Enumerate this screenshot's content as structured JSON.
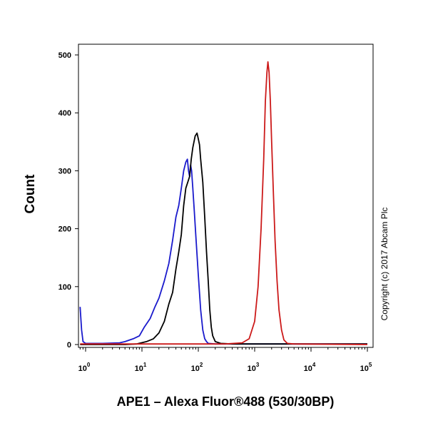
{
  "chart_data": {
    "type": "line",
    "xlabel": "APE1 – Alexa Fluor®488 (530/30BP)",
    "ylabel": "Count",
    "copyright": "Copyright (c) 2017 Abcam Plc",
    "x_scale": "log",
    "xlim": [
      0.8,
      100000
    ],
    "ylim": [
      0,
      500
    ],
    "x_ticks": [
      {
        "base": "10",
        "exp": "0",
        "value": 1
      },
      {
        "base": "10",
        "exp": "1",
        "value": 10
      },
      {
        "base": "10",
        "exp": "2",
        "value": 100
      },
      {
        "base": "10",
        "exp": "3",
        "value": 1000
      },
      {
        "base": "10",
        "exp": "4",
        "value": 10000
      },
      {
        "base": "10",
        "exp": "5",
        "value": 100000
      }
    ],
    "y_ticks": [
      0,
      100,
      200,
      300,
      400,
      500
    ],
    "grid": false,
    "legend": "none",
    "series": [
      {
        "color": "#1a1acc",
        "points": [
          [
            0.8,
            65
          ],
          [
            0.85,
            25
          ],
          [
            0.9,
            5
          ],
          [
            1,
            2
          ],
          [
            2,
            2
          ],
          [
            4,
            3
          ],
          [
            5,
            5
          ],
          [
            7,
            10
          ],
          [
            9,
            15
          ],
          [
            11,
            30
          ],
          [
            14,
            45
          ],
          [
            17,
            65
          ],
          [
            20,
            80
          ],
          [
            25,
            110
          ],
          [
            30,
            140
          ],
          [
            35,
            180
          ],
          [
            40,
            220
          ],
          [
            45,
            240
          ],
          [
            50,
            270
          ],
          [
            55,
            300
          ],
          [
            60,
            315
          ],
          [
            64,
            320
          ],
          [
            67,
            300
          ],
          [
            70,
            290
          ],
          [
            73,
            310
          ],
          [
            76,
            300
          ],
          [
            80,
            270
          ],
          [
            85,
            230
          ],
          [
            90,
            190
          ],
          [
            100,
            120
          ],
          [
            110,
            60
          ],
          [
            120,
            25
          ],
          [
            130,
            10
          ],
          [
            140,
            5
          ],
          [
            150,
            2
          ],
          [
            200,
            1
          ],
          [
            1000,
            1
          ],
          [
            100000,
            1
          ]
        ]
      },
      {
        "color": "#000000",
        "points": [
          [
            0.8,
            0
          ],
          [
            5,
            0
          ],
          [
            8,
            1
          ],
          [
            12,
            5
          ],
          [
            16,
            10
          ],
          [
            20,
            20
          ],
          [
            25,
            40
          ],
          [
            30,
            70
          ],
          [
            35,
            90
          ],
          [
            40,
            130
          ],
          [
            45,
            160
          ],
          [
            50,
            190
          ],
          [
            55,
            240
          ],
          [
            60,
            270
          ],
          [
            70,
            290
          ],
          [
            75,
            320
          ],
          [
            80,
            340
          ],
          [
            88,
            360
          ],
          [
            95,
            365
          ],
          [
            100,
            355
          ],
          [
            105,
            345
          ],
          [
            110,
            320
          ],
          [
            120,
            280
          ],
          [
            130,
            220
          ],
          [
            140,
            160
          ],
          [
            150,
            110
          ],
          [
            160,
            60
          ],
          [
            170,
            30
          ],
          [
            180,
            15
          ],
          [
            200,
            5
          ],
          [
            250,
            2
          ],
          [
            400,
            1
          ],
          [
            100000,
            1
          ]
        ]
      },
      {
        "color": "#cc1a1a",
        "points": [
          [
            0.8,
            1
          ],
          [
            300,
            1
          ],
          [
            600,
            3
          ],
          [
            800,
            10
          ],
          [
            1000,
            40
          ],
          [
            1150,
            100
          ],
          [
            1300,
            200
          ],
          [
            1450,
            320
          ],
          [
            1550,
            420
          ],
          [
            1650,
            470
          ],
          [
            1720,
            488
          ],
          [
            1800,
            470
          ],
          [
            1900,
            420
          ],
          [
            2000,
            350
          ],
          [
            2150,
            260
          ],
          [
            2300,
            180
          ],
          [
            2500,
            110
          ],
          [
            2700,
            60
          ],
          [
            3000,
            25
          ],
          [
            3300,
            8
          ],
          [
            3800,
            2
          ],
          [
            5000,
            1
          ],
          [
            100000,
            0
          ]
        ]
      }
    ]
  }
}
